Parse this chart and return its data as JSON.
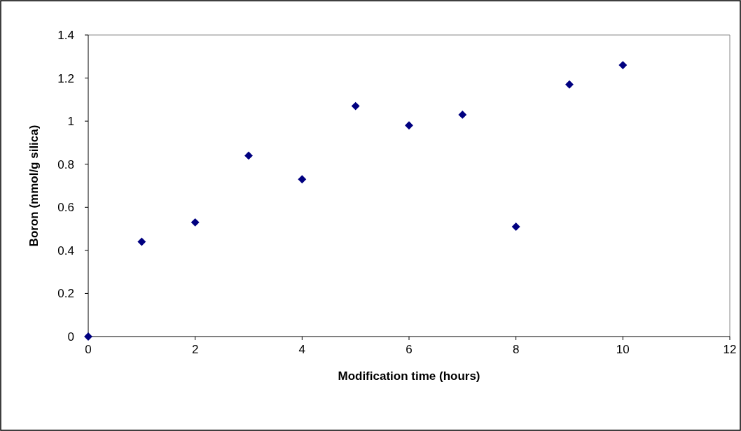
{
  "chart_data": {
    "type": "scatter",
    "xlabel": "Modification time (hours)",
    "ylabel": "Boron (mmol/g silica)",
    "x": [
      0,
      1,
      2,
      3,
      4,
      5,
      6,
      7,
      8,
      9,
      10
    ],
    "series": [
      {
        "color": "#000080",
        "values": [
          0,
          0.44,
          0.53,
          0.84,
          0.73,
          1.07,
          0.98,
          1.03,
          0.51,
          1.17,
          1.26
        ]
      }
    ],
    "xlim": [
      0,
      12
    ],
    "xticks": [
      0,
      2,
      4,
      6,
      8,
      10,
      12
    ],
    "ylim": [
      0,
      1.4
    ],
    "yticks": [
      0,
      0.2,
      0.4,
      0.6,
      0.8,
      1,
      1.2,
      1.4
    ],
    "marker": "diamond"
  }
}
